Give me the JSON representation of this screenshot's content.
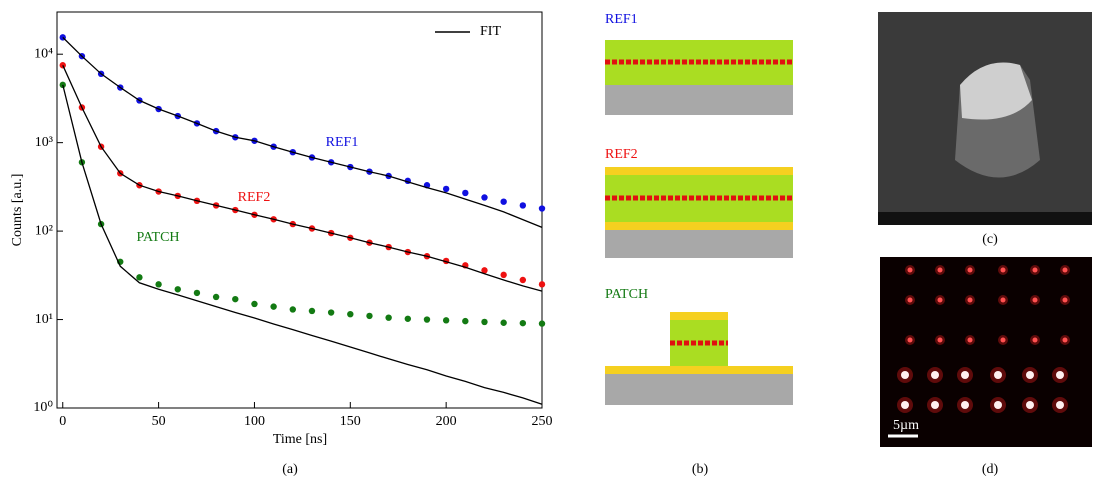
{
  "chart_data": {
    "type": "scatter",
    "x_label": "Time [ns]",
    "y_label": "Counts [a.u.]",
    "log_y": true,
    "x": [
      0,
      10,
      20,
      30,
      40,
      50,
      60,
      70,
      80,
      90,
      100,
      110,
      120,
      130,
      140,
      150,
      160,
      170,
      180,
      190,
      200,
      210,
      220,
      230,
      240,
      250
    ],
    "series": [
      {
        "name": "REF1",
        "color": "#1010e0",
        "values": [
          15500,
          9500,
          6000,
          4200,
          3000,
          2400,
          2000,
          1650,
          1350,
          1150,
          1050,
          900,
          780,
          680,
          600,
          530,
          470,
          420,
          370,
          330,
          300,
          270,
          240,
          215,
          195,
          180
        ]
      },
      {
        "name": "REF2",
        "color": "#ee1111",
        "values": [
          7500,
          2500,
          900,
          450,
          330,
          280,
          250,
          220,
          195,
          173,
          153,
          136,
          120,
          107,
          95,
          84,
          74,
          66,
          58,
          52,
          46,
          41,
          36,
          32,
          28,
          25
        ]
      },
      {
        "name": "PATCH",
        "color": "#137a13",
        "values": [
          4500,
          600,
          120,
          45,
          30,
          25,
          22,
          20,
          18,
          17,
          15,
          14,
          13,
          12.5,
          12,
          11.5,
          11,
          10.5,
          10.2,
          10,
          9.8,
          9.6,
          9.4,
          9.2,
          9.1,
          9
        ]
      }
    ],
    "fit": {
      "name": "FIT",
      "color": "#000000",
      "curves": [
        [
          15500,
          9500,
          6000,
          4200,
          3000,
          2400,
          2000,
          1650,
          1350,
          1150,
          1050,
          900,
          780,
          680,
          600,
          530,
          470,
          420,
          360,
          310,
          270,
          230,
          195,
          165,
          135,
          110
        ],
        [
          7500,
          2500,
          900,
          450,
          330,
          280,
          250,
          220,
          195,
          173,
          153,
          136,
          120,
          107,
          95,
          84,
          74,
          66,
          58,
          52,
          45,
          39,
          33,
          28,
          24,
          21
        ],
        [
          4500,
          600,
          120,
          40,
          26,
          22,
          19,
          16.3,
          14,
          12,
          10.4,
          8.9,
          7.7,
          6.6,
          5.7,
          4.9,
          4.2,
          3.6,
          3.1,
          2.7,
          2.3,
          2,
          1.7,
          1.5,
          1.3,
          1.1
        ]
      ]
    },
    "legend": "upper right",
    "xlim": [
      -3,
      250
    ],
    "ylim": [
      1,
      30000
    ],
    "xticks": [
      0,
      50,
      100,
      150,
      200,
      250
    ],
    "yticks": [
      {
        "value": 1,
        "label": "10⁰"
      },
      {
        "value": 10,
        "label": "10¹"
      },
      {
        "value": 100,
        "label": "10²"
      },
      {
        "value": 1000,
        "label": "10³"
      },
      {
        "value": 10000,
        "label": "10⁴"
      }
    ]
  },
  "panel_b": {
    "labels": [
      "REF1",
      "REF2",
      "PATCH"
    ]
  },
  "panel_d": {
    "scale_bar": "5µm"
  },
  "captions": [
    "(a)",
    "(b)",
    "(c)",
    "(d)"
  ]
}
